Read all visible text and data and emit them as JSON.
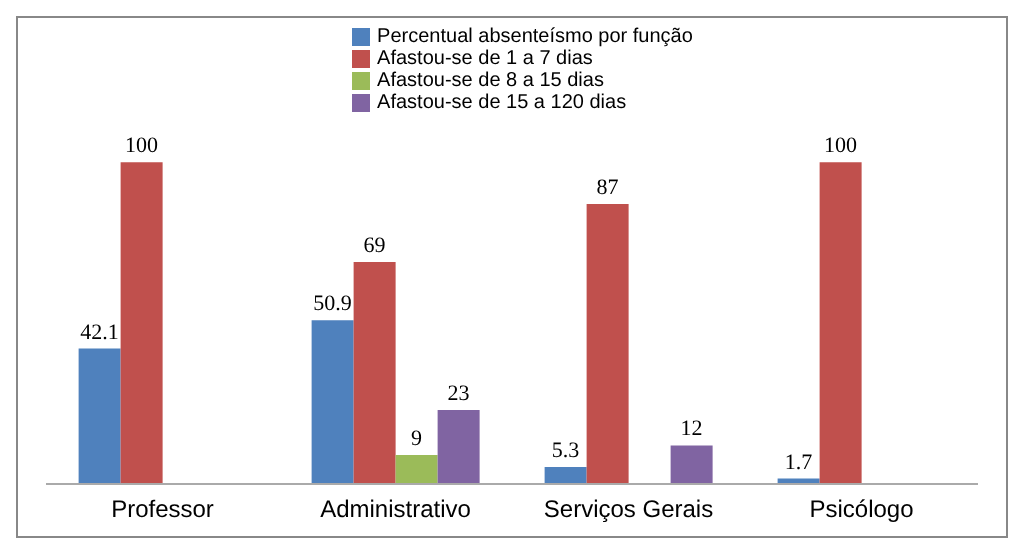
{
  "chart_data": {
    "type": "bar",
    "categories": [
      "Professor",
      "Administrativo",
      "Serviços Gerais",
      "Psicólogo"
    ],
    "series": [
      {
        "name": "Percentual absenteísmo por função",
        "color": "#4f81bd",
        "values": [
          42.1,
          50.9,
          5.3,
          1.7
        ]
      },
      {
        "name": "Afastou-se de 1 a 7 dias",
        "color": "#c0504d",
        "values": [
          100,
          69,
          87,
          100
        ]
      },
      {
        "name": "Afastou-se de 8 a 15 dias",
        "color": "#9bbb59",
        "values": [
          null,
          9,
          null,
          null
        ]
      },
      {
        "name": "Afastou-se de 15 a 120 dias",
        "color": "#8064a2",
        "values": [
          null,
          23,
          12,
          null
        ]
      }
    ],
    "data_labels": true,
    "legend": "top",
    "grid": false,
    "tick_labels": "x"
  }
}
